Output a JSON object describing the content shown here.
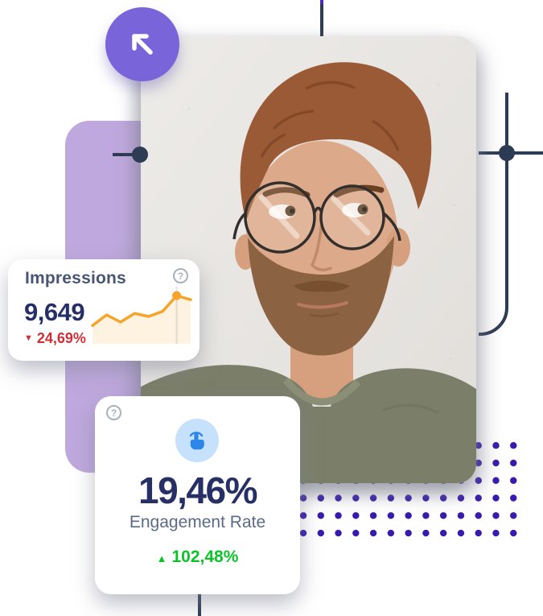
{
  "impressions_card": {
    "title": "Impressions",
    "help": "?",
    "value": "9,649",
    "change": "24,69%",
    "trend": "down"
  },
  "engagement_card": {
    "help": "?",
    "value": "19,46%",
    "label": "Engagement Rate",
    "change": "102,48%",
    "trend": "up"
  },
  "icons": {
    "down_triangle": "▼",
    "up_triangle": "▲"
  },
  "chart_data": {
    "type": "line",
    "title": "Impressions sparkline",
    "x": [
      1,
      2,
      3,
      4,
      5,
      6,
      7,
      8
    ],
    "series": [
      {
        "name": "Impressions",
        "values": [
          36,
          57,
          43,
          60,
          54,
          64,
          95,
          87
        ]
      }
    ],
    "value_scale": "relative 0-100 (no axes shown)",
    "highlight_index": 6,
    "highlight_value": "9,649",
    "line_color": "#f6a42c",
    "area": true,
    "grid": false,
    "legend": false
  },
  "decor": {
    "dots_grid": {
      "rows": 6,
      "cols": 13,
      "spacing": 21.7,
      "radius": 4.2
    }
  },
  "colors": {
    "navy": "#2e3b54",
    "text-navy": "#262f66",
    "purple": "#7964d9",
    "lavender": "#bfa8dd",
    "dots": "#381bac",
    "orange": "#f6a42c",
    "red": "#cf3038",
    "green": "#0cc42a",
    "blue-icon": "#2e86ea",
    "blue-circle": "#c6e1fc",
    "title": "#485672",
    "label": "#5b6b85",
    "help": "#a9b1bd"
  }
}
